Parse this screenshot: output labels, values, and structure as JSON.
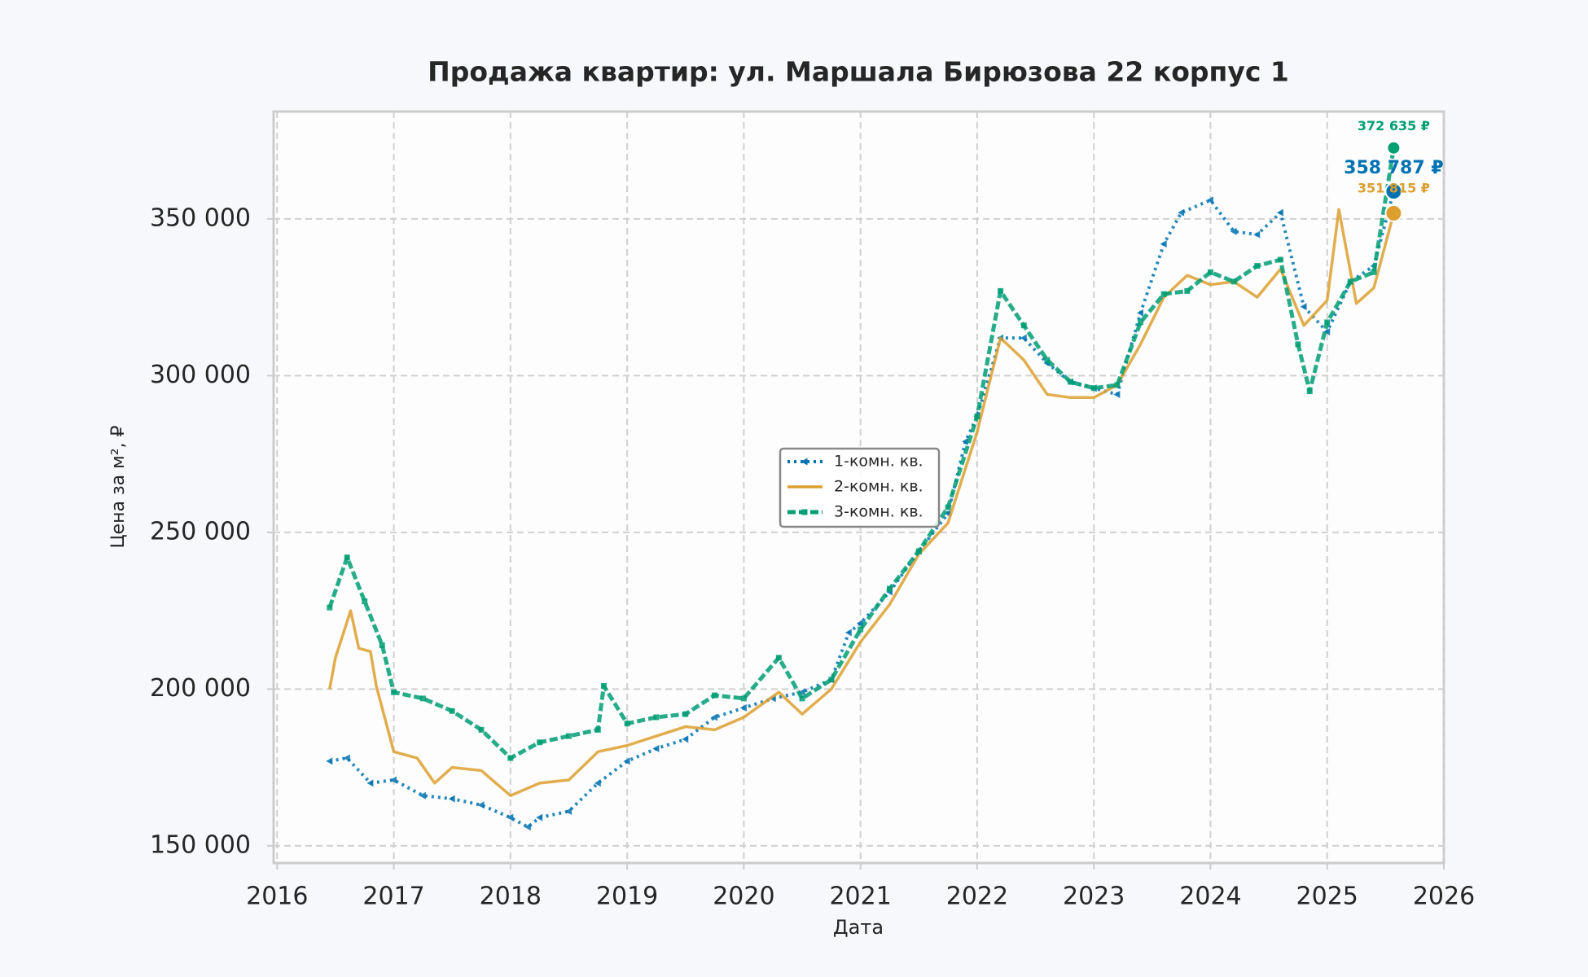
{
  "chart_data": {
    "type": "line",
    "title": "Продажа квартир: ул. Маршала Бирюзова 22 корпус 1",
    "x_label": "Дата",
    "y_label": "Цена за м², ₽",
    "xlim": [
      2015.97,
      2026
    ],
    "xticks": [
      2016,
      2017,
      2018,
      2019,
      2020,
      2021,
      2022,
      2023,
      2024,
      2025,
      2026
    ],
    "ylim": [
      144500,
      384250
    ],
    "yticks": [
      {
        "value": 150000,
        "label": "150 000"
      },
      {
        "value": 200000,
        "label": "200 000"
      },
      {
        "value": 250000,
        "label": "250 000"
      },
      {
        "value": 300000,
        "label": "300 000"
      },
      {
        "value": 350000,
        "label": "350 000"
      }
    ],
    "grid": true,
    "legend": "center",
    "series": [
      {
        "name": "1-комн. кв.",
        "color": "#0072b2",
        "style": "dotted",
        "marker": "triangle-left",
        "x": [
          2016.45,
          2016.6,
          2016.8,
          2017.0,
          2017.25,
          2017.5,
          2017.75,
          2018.0,
          2018.15,
          2018.25,
          2018.5,
          2018.75,
          2019.0,
          2019.25,
          2019.5,
          2019.75,
          2020.0,
          2020.25,
          2020.5,
          2020.75,
          2020.9,
          2021.0,
          2021.25,
          2021.5,
          2021.75,
          2021.9,
          2022.0,
          2022.2,
          2022.4,
          2022.6,
          2022.8,
          2023.0,
          2023.2,
          2023.4,
          2023.6,
          2023.75,
          2024.0,
          2024.2,
          2024.4,
          2024.6,
          2024.8,
          2025.0,
          2025.2,
          2025.4,
          2025.57
        ],
        "values": [
          177000,
          178000,
          170000,
          171000,
          166000,
          165000,
          163000,
          159000,
          156000,
          159000,
          161000,
          170000,
          177000,
          181000,
          184000,
          191000,
          194000,
          197000,
          199000,
          203000,
          218000,
          221000,
          231000,
          244000,
          256000,
          279000,
          287000,
          312000,
          312000,
          304000,
          298000,
          296000,
          294000,
          320000,
          342000,
          352000,
          356000,
          346000,
          345000,
          352000,
          322000,
          314000,
          330000,
          335000,
          358787
        ],
        "value_labels": [
          null,
          null,
          null,
          null,
          null,
          null,
          null,
          null,
          null,
          null,
          null,
          null,
          null,
          null,
          null,
          null,
          null,
          null,
          null,
          null,
          null,
          null,
          null,
          null,
          null,
          null,
          null,
          null,
          null,
          null,
          null,
          null,
          null,
          null,
          null,
          null,
          null,
          null,
          null,
          null,
          null,
          null,
          null,
          null,
          "358 787 ₽"
        ]
      },
      {
        "name": "2-комн. кв.",
        "color": "#dc9f2e",
        "style": "solid",
        "marker": null,
        "x": [
          2016.45,
          2016.5,
          2016.63,
          2016.7,
          2016.8,
          2016.85,
          2016.95,
          2017.0,
          2017.2,
          2017.35,
          2017.5,
          2017.75,
          2018.0,
          2018.25,
          2018.5,
          2018.75,
          2019.0,
          2019.25,
          2019.5,
          2019.75,
          2020.0,
          2020.3,
          2020.5,
          2020.75,
          2021.0,
          2021.25,
          2021.5,
          2021.75,
          2022.0,
          2022.2,
          2022.4,
          2022.6,
          2022.8,
          2023.0,
          2023.2,
          2023.4,
          2023.6,
          2023.8,
          2024.0,
          2024.2,
          2024.4,
          2024.6,
          2024.8,
          2025.0,
          2025.1,
          2025.25,
          2025.4,
          2025.57
        ],
        "values": [
          200000,
          210000,
          225000,
          213000,
          212000,
          201000,
          187000,
          180000,
          178000,
          170000,
          175000,
          174000,
          166000,
          170000,
          171000,
          180000,
          182000,
          185000,
          188000,
          187000,
          191000,
          199000,
          192000,
          200000,
          215000,
          227000,
          243000,
          253000,
          282000,
          312000,
          305000,
          294000,
          293000,
          293000,
          297000,
          310000,
          325000,
          332000,
          329000,
          330000,
          325000,
          334000,
          316000,
          324000,
          353000,
          323000,
          328000,
          351815
        ],
        "value_labels": [
          null,
          null,
          null,
          null,
          null,
          null,
          null,
          null,
          null,
          null,
          null,
          null,
          null,
          null,
          null,
          null,
          null,
          null,
          null,
          null,
          null,
          null,
          null,
          null,
          null,
          null,
          null,
          null,
          null,
          null,
          null,
          null,
          null,
          null,
          null,
          null,
          null,
          null,
          null,
          null,
          null,
          null,
          null,
          null,
          null,
          null,
          null,
          "351 815 ₽"
        ]
      },
      {
        "name": "3-комн. кв.",
        "color": "#009e73",
        "style": "dashed",
        "marker": "square",
        "x": [
          2016.45,
          2016.6,
          2016.75,
          2016.9,
          2017.0,
          2017.25,
          2017.5,
          2017.75,
          2018.0,
          2018.25,
          2018.5,
          2018.75,
          2018.8,
          2019.0,
          2019.25,
          2019.5,
          2019.75,
          2020.0,
          2020.3,
          2020.5,
          2020.75,
          2021.0,
          2021.25,
          2021.5,
          2021.75,
          2022.0,
          2022.2,
          2022.4,
          2022.6,
          2022.8,
          2023.0,
          2023.2,
          2023.4,
          2023.6,
          2023.8,
          2024.0,
          2024.2,
          2024.4,
          2024.6,
          2024.75,
          2024.85,
          2025.0,
          2025.2,
          2025.4,
          2025.57
        ],
        "values": [
          226000,
          242000,
          228000,
          214000,
          199000,
          197000,
          193000,
          187000,
          178000,
          183000,
          185000,
          187000,
          201000,
          189000,
          191000,
          192000,
          198000,
          197000,
          210000,
          197000,
          203000,
          219000,
          232000,
          244000,
          258000,
          287000,
          327000,
          316000,
          305000,
          298000,
          296000,
          297000,
          317000,
          326000,
          327000,
          333000,
          330000,
          335000,
          337000,
          310000,
          295000,
          317000,
          330000,
          333000,
          372635
        ],
        "value_labels": [
          null,
          null,
          null,
          null,
          null,
          null,
          null,
          null,
          null,
          null,
          null,
          null,
          null,
          null,
          null,
          null,
          null,
          null,
          null,
          null,
          null,
          null,
          null,
          null,
          null,
          null,
          null,
          null,
          null,
          null,
          null,
          null,
          null,
          null,
          null,
          null,
          null,
          null,
          null,
          null,
          null,
          null,
          null,
          null,
          "372 635 ₽"
        ]
      }
    ]
  }
}
